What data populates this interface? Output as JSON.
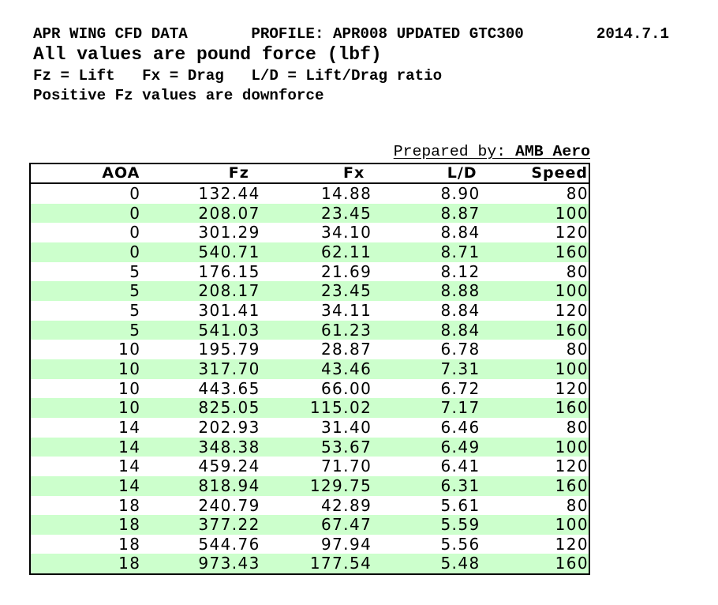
{
  "header": {
    "line1": "APR WING CFD DATA       PROFILE: APR008 UPDATED GTC300        2014.7.1",
    "line2": "All values are pound force (lbf)",
    "line3": "Fz = Lift   Fx = Drag   L/D = Lift/Drag ratio",
    "line4": "Positive Fz values are downforce"
  },
  "prepared_by": {
    "label": "Prepared by: ",
    "value": "AMB Aero"
  },
  "table": {
    "columns": [
      "AOA",
      "Fz",
      "Fx",
      "L/D",
      "Speed"
    ],
    "rows": [
      [
        "0",
        "132.44",
        "14.88",
        "8.90",
        "80"
      ],
      [
        "0",
        "208.07",
        "23.45",
        "8.87",
        "100"
      ],
      [
        "0",
        "301.29",
        "34.10",
        "8.84",
        "120"
      ],
      [
        "0",
        "540.71",
        "62.11",
        "8.71",
        "160"
      ],
      [
        "5",
        "176.15",
        "21.69",
        "8.12",
        "80"
      ],
      [
        "5",
        "208.17",
        "23.45",
        "8.88",
        "100"
      ],
      [
        "5",
        "301.41",
        "34.11",
        "8.84",
        "120"
      ],
      [
        "5",
        "541.03",
        "61.23",
        "8.84",
        "160"
      ],
      [
        "10",
        "195.79",
        "28.87",
        "6.78",
        "80"
      ],
      [
        "10",
        "317.70",
        "43.46",
        "7.31",
        "100"
      ],
      [
        "10",
        "443.65",
        "66.00",
        "6.72",
        "120"
      ],
      [
        "10",
        "825.05",
        "115.02",
        "7.17",
        "160"
      ],
      [
        "14",
        "202.93",
        "31.40",
        "6.46",
        "80"
      ],
      [
        "14",
        "348.38",
        "53.67",
        "6.49",
        "100"
      ],
      [
        "14",
        "459.24",
        "71.70",
        "6.41",
        "120"
      ],
      [
        "14",
        "818.94",
        "129.75",
        "6.31",
        "160"
      ],
      [
        "18",
        "240.79",
        "42.89",
        "5.61",
        "80"
      ],
      [
        "18",
        "377.22",
        "67.47",
        "5.59",
        "100"
      ],
      [
        "18",
        "544.76",
        "97.94",
        "5.56",
        "120"
      ],
      [
        "18",
        "973.43",
        "177.54",
        "5.48",
        "160"
      ]
    ]
  },
  "colors": {
    "row_alt_green": "#ccffcc",
    "border": "#000000"
  }
}
